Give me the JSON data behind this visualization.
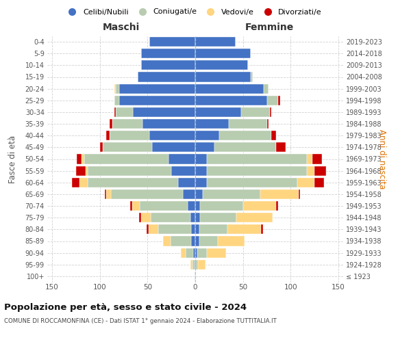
{
  "age_groups": [
    "100+",
    "95-99",
    "90-94",
    "85-89",
    "80-84",
    "75-79",
    "70-74",
    "65-69",
    "60-64",
    "55-59",
    "50-54",
    "45-49",
    "40-44",
    "35-39",
    "30-34",
    "25-29",
    "20-24",
    "15-19",
    "10-14",
    "5-9",
    "0-4"
  ],
  "birth_years": [
    "≤ 1923",
    "1924-1928",
    "1929-1933",
    "1934-1938",
    "1939-1943",
    "1944-1948",
    "1949-1953",
    "1954-1958",
    "1959-1963",
    "1964-1968",
    "1969-1973",
    "1974-1978",
    "1979-1983",
    "1984-1988",
    "1989-1993",
    "1994-1998",
    "1999-2003",
    "2004-2008",
    "2009-2013",
    "2014-2018",
    "2019-2023"
  ],
  "male": {
    "celibi": [
      1,
      1,
      2,
      4,
      4,
      5,
      8,
      13,
      18,
      25,
      28,
      45,
      48,
      55,
      65,
      80,
      80,
      60,
      57,
      57,
      48
    ],
    "coniugati": [
      0,
      2,
      8,
      22,
      35,
      42,
      50,
      75,
      95,
      88,
      88,
      52,
      42,
      32,
      18,
      5,
      3,
      0,
      0,
      0,
      0
    ],
    "vedovi": [
      0,
      2,
      5,
      8,
      10,
      10,
      8,
      5,
      8,
      2,
      3,
      0,
      0,
      0,
      0,
      0,
      2,
      0,
      0,
      0,
      0
    ],
    "divorziati": [
      0,
      0,
      0,
      0,
      2,
      2,
      2,
      2,
      8,
      10,
      5,
      3,
      3,
      3,
      2,
      0,
      0,
      0,
      0,
      0,
      0
    ]
  },
  "female": {
    "nubili": [
      0,
      1,
      2,
      4,
      4,
      5,
      5,
      8,
      12,
      12,
      12,
      20,
      25,
      35,
      48,
      75,
      72,
      58,
      55,
      58,
      42
    ],
    "coniugate": [
      0,
      2,
      10,
      20,
      30,
      38,
      45,
      60,
      95,
      105,
      105,
      65,
      55,
      40,
      30,
      12,
      5,
      2,
      0,
      0,
      0
    ],
    "vedove": [
      1,
      8,
      20,
      28,
      35,
      38,
      35,
      40,
      18,
      8,
      6,
      0,
      0,
      0,
      0,
      0,
      0,
      0,
      0,
      0,
      0
    ],
    "divorziate": [
      0,
      0,
      0,
      0,
      2,
      0,
      2,
      2,
      10,
      12,
      10,
      10,
      5,
      2,
      2,
      2,
      0,
      0,
      0,
      0,
      0
    ]
  },
  "colors": {
    "celibi_nubili": "#4472C4",
    "coniugati": "#B8CCB0",
    "vedovi": "#FFD580",
    "divorziati": "#CC0000"
  },
  "xlim": 155,
  "title": "Popolazione per età, sesso e stato civile - 2024",
  "subtitle": "COMUNE DI ROCCAMONFINA (CE) - Dati ISTAT 1° gennaio 2024 - Elaborazione TUTTITALIA.IT",
  "ylabel_left": "Fasce di età",
  "ylabel_right": "Anni di nascita",
  "xlabel_left": "Maschi",
  "xlabel_right": "Femmine",
  "bg_color": "#ffffff",
  "grid_color": "#cccccc",
  "legend_labels": [
    "Celibi/Nubili",
    "Coniugati/e",
    "Vedovi/e",
    "Divorziati/e"
  ]
}
